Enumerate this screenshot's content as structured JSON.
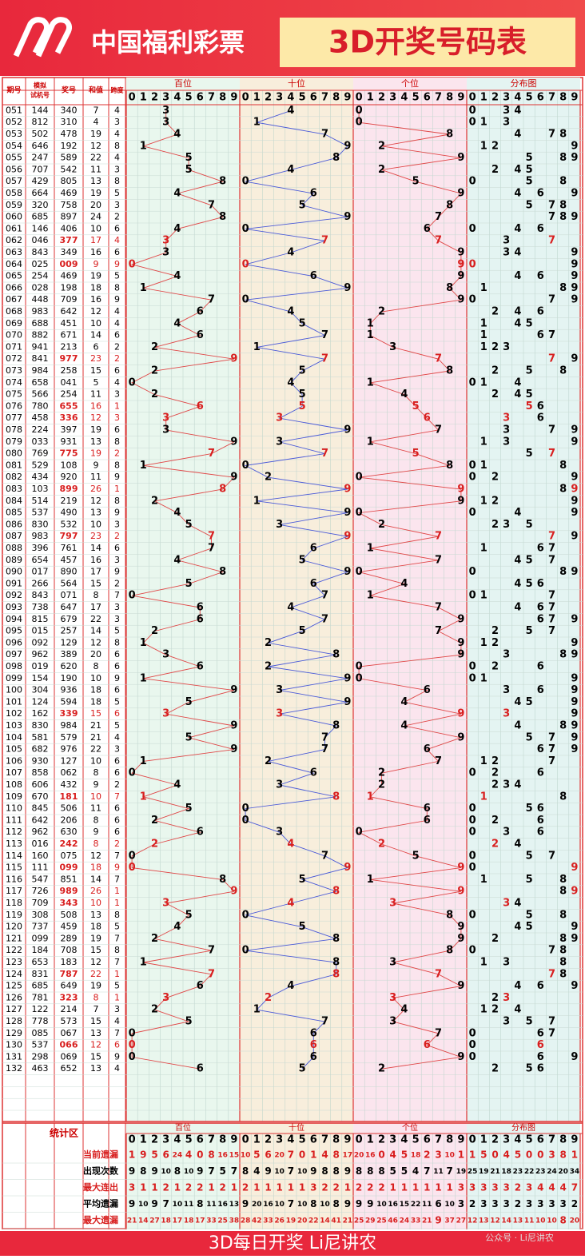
{
  "header": {
    "logo": "中国福利彩票",
    "title": "3D开奖号码表"
  },
  "table": {
    "columns": [
      "期号",
      "模拟",
      "试机号",
      "奖号",
      "和值",
      "跨度"
    ],
    "blocks": [
      "百位",
      "十位",
      "个位",
      "分布图"
    ],
    "digits": [
      0,
      1,
      2,
      3,
      4,
      5,
      6,
      7,
      8,
      9
    ],
    "rows": [
      [
        "051",
        "144",
        "340",
        "7",
        "4"
      ],
      [
        "052",
        "812",
        "310",
        "4",
        "3"
      ],
      [
        "053",
        "502",
        "478",
        "19",
        "4"
      ],
      [
        "054",
        "646",
        "192",
        "12",
        "8"
      ],
      [
        "055",
        "247",
        "589",
        "22",
        "4"
      ],
      [
        "056",
        "707",
        "542",
        "11",
        "3"
      ],
      [
        "057",
        "429",
        "805",
        "13",
        "8"
      ],
      [
        "058",
        "664",
        "469",
        "19",
        "5"
      ],
      [
        "059",
        "320",
        "758",
        "20",
        "3"
      ],
      [
        "060",
        "685",
        "897",
        "24",
        "2"
      ],
      [
        "061",
        "146",
        "406",
        "10",
        "6"
      ],
      [
        "062",
        "046",
        "377",
        "17",
        "4"
      ],
      [
        "063",
        "843",
        "349",
        "16",
        "6"
      ],
      [
        "064",
        "025",
        "009",
        "9",
        "9"
      ],
      [
        "065",
        "254",
        "469",
        "19",
        "5"
      ],
      [
        "066",
        "028",
        "198",
        "18",
        "8"
      ],
      [
        "067",
        "448",
        "709",
        "16",
        "9"
      ],
      [
        "068",
        "983",
        "642",
        "12",
        "4"
      ],
      [
        "069",
        "688",
        "451",
        "10",
        "4"
      ],
      [
        "070",
        "882",
        "671",
        "14",
        "6"
      ],
      [
        "071",
        "941",
        "213",
        "6",
        "2"
      ],
      [
        "072",
        "841",
        "977",
        "23",
        "2"
      ],
      [
        "073",
        "984",
        "258",
        "15",
        "6"
      ],
      [
        "074",
        "658",
        "041",
        "5",
        "4"
      ],
      [
        "075",
        "566",
        "254",
        "11",
        "3"
      ],
      [
        "076",
        "780",
        "655",
        "16",
        "1"
      ],
      [
        "077",
        "458",
        "336",
        "12",
        "3"
      ],
      [
        "078",
        "224",
        "397",
        "19",
        "6"
      ],
      [
        "079",
        "033",
        "931",
        "13",
        "8"
      ],
      [
        "080",
        "769",
        "775",
        "19",
        "2"
      ],
      [
        "081",
        "529",
        "108",
        "9",
        "8"
      ],
      [
        "082",
        "434",
        "920",
        "11",
        "9"
      ],
      [
        "083",
        "103",
        "899",
        "26",
        "1"
      ],
      [
        "084",
        "514",
        "219",
        "12",
        "8"
      ],
      [
        "085",
        "537",
        "490",
        "13",
        "9"
      ],
      [
        "086",
        "830",
        "532",
        "10",
        "3"
      ],
      [
        "087",
        "983",
        "797",
        "23",
        "2"
      ],
      [
        "088",
        "396",
        "761",
        "14",
        "6"
      ],
      [
        "089",
        "654",
        "457",
        "16",
        "3"
      ],
      [
        "090",
        "017",
        "890",
        "17",
        "9"
      ],
      [
        "091",
        "266",
        "564",
        "15",
        "2"
      ],
      [
        "092",
        "843",
        "071",
        "8",
        "7"
      ],
      [
        "093",
        "738",
        "647",
        "17",
        "3"
      ],
      [
        "094",
        "815",
        "679",
        "22",
        "3"
      ],
      [
        "095",
        "015",
        "257",
        "14",
        "5"
      ],
      [
        "096",
        "092",
        "129",
        "12",
        "8"
      ],
      [
        "097",
        "962",
        "389",
        "20",
        "6"
      ],
      [
        "098",
        "019",
        "620",
        "8",
        "6"
      ],
      [
        "099",
        "154",
        "190",
        "10",
        "9"
      ],
      [
        "100",
        "304",
        "936",
        "18",
        "6"
      ],
      [
        "101",
        "124",
        "594",
        "18",
        "5"
      ],
      [
        "102",
        "162",
        "339",
        "15",
        "6"
      ],
      [
        "103",
        "830",
        "984",
        "21",
        "5"
      ],
      [
        "104",
        "581",
        "579",
        "21",
        "4"
      ],
      [
        "105",
        "682",
        "976",
        "22",
        "3"
      ],
      [
        "106",
        "930",
        "127",
        "10",
        "6"
      ],
      [
        "107",
        "858",
        "062",
        "8",
        "6"
      ],
      [
        "108",
        "606",
        "432",
        "9",
        "2"
      ],
      [
        "109",
        "670",
        "181",
        "10",
        "7"
      ],
      [
        "110",
        "845",
        "506",
        "11",
        "6"
      ],
      [
        "111",
        "642",
        "206",
        "8",
        "6"
      ],
      [
        "112",
        "962",
        "630",
        "9",
        "6"
      ],
      [
        "113",
        "016",
        "242",
        "8",
        "2"
      ],
      [
        "114",
        "160",
        "075",
        "12",
        "7"
      ],
      [
        "115",
        "111",
        "099",
        "18",
        "9"
      ],
      [
        "116",
        "547",
        "851",
        "14",
        "7"
      ],
      [
        "117",
        "726",
        "989",
        "26",
        "1"
      ],
      [
        "118",
        "709",
        "343",
        "10",
        "1"
      ],
      [
        "119",
        "308",
        "508",
        "13",
        "8"
      ],
      [
        "120",
        "737",
        "459",
        "18",
        "5"
      ],
      [
        "121",
        "099",
        "289",
        "19",
        "7"
      ],
      [
        "122",
        "184",
        "708",
        "15",
        "8"
      ],
      [
        "123",
        "653",
        "183",
        "12",
        "7"
      ],
      [
        "124",
        "831",
        "787",
        "22",
        "1"
      ],
      [
        "125",
        "685",
        "649",
        "19",
        "5"
      ],
      [
        "126",
        "781",
        "323",
        "8",
        "1"
      ],
      [
        "127",
        "122",
        "214",
        "7",
        "3"
      ],
      [
        "128",
        "778",
        "573",
        "15",
        "4"
      ],
      [
        "129",
        "085",
        "067",
        "13",
        "7"
      ],
      [
        "130",
        "537",
        "066",
        "12",
        "6"
      ],
      [
        "131",
        "298",
        "069",
        "15",
        "9"
      ],
      [
        "132",
        "463",
        "652",
        "13",
        "4"
      ]
    ]
  },
  "stats": {
    "title": "统计区",
    "rows": [
      {
        "label": "当前遗漏",
        "values": [
          1,
          9,
          5,
          6,
          24,
          4,
          0,
          8,
          16,
          15,
          10,
          5,
          6,
          20,
          7,
          0,
          1,
          4,
          8,
          17,
          20,
          16,
          0,
          4,
          5,
          18,
          2,
          3,
          10,
          1,
          1,
          5,
          0,
          4,
          5,
          0,
          0,
          3,
          8,
          1
        ]
      },
      {
        "label": "出现次数",
        "values": [
          9,
          8,
          9,
          10,
          8,
          10,
          9,
          7,
          5,
          7,
          8,
          4,
          9,
          10,
          7,
          10,
          9,
          8,
          8,
          9,
          8,
          8,
          8,
          5,
          5,
          4,
          7,
          11,
          7,
          19,
          25,
          19,
          21,
          18,
          23,
          22,
          23,
          24,
          20,
          34
        ]
      },
      {
        "label": "最大连出",
        "values": [
          3,
          1,
          1,
          2,
          1,
          2,
          2,
          1,
          2,
          1,
          2,
          1,
          1,
          1,
          1,
          1,
          3,
          2,
          2,
          1,
          2,
          2,
          2,
          1,
          1,
          1,
          1,
          1,
          1,
          3,
          3,
          3,
          3,
          3,
          2,
          3,
          4,
          4,
          4,
          7
        ]
      },
      {
        "label": "平均遗漏",
        "values": [
          9,
          10,
          9,
          7,
          10,
          11,
          8,
          11,
          16,
          13,
          9,
          20,
          16,
          10,
          7,
          10,
          8,
          10,
          8,
          9,
          9,
          9,
          10,
          16,
          15,
          22,
          11,
          6,
          10,
          3,
          2,
          3,
          3,
          3,
          2,
          3,
          3,
          3,
          3,
          2
        ]
      },
      {
        "label": "最大遗漏",
        "values": [
          21,
          14,
          27,
          18,
          17,
          18,
          17,
          33,
          25,
          38,
          28,
          42,
          33,
          26,
          19,
          20,
          22,
          14,
          41,
          21,
          25,
          29,
          25,
          46,
          24,
          33,
          21,
          9,
          37,
          27,
          12,
          13,
          12,
          14,
          13,
          11,
          10,
          10,
          8,
          20
        ]
      }
    ]
  },
  "footer": {
    "text": "3D每日开奖 Li尼讲农",
    "watermark": "公众号 · Li尼讲农"
  }
}
